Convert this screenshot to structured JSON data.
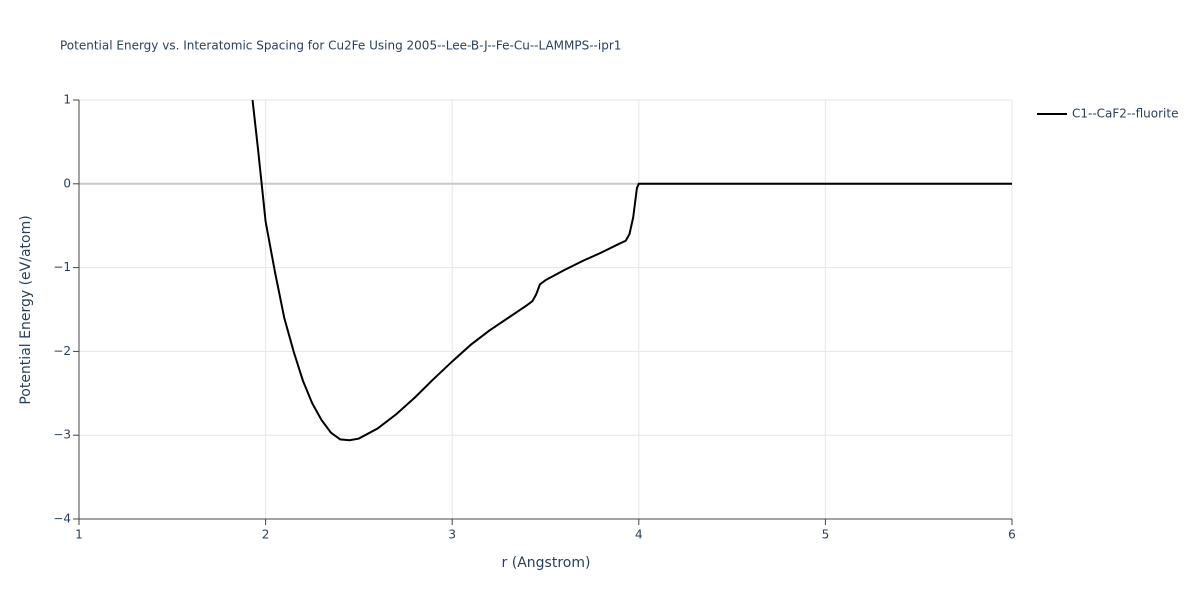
{
  "chart_data": {
    "type": "line",
    "title": "Potential Energy vs. Interatomic Spacing for Cu2Fe Using 2005--Lee-B-J--Fe-Cu--LAMMPS--ipr1",
    "x_label": "r (Angstrom)",
    "y_label": "Potential Energy (eV/atom)",
    "x": [
      1.93,
      1.96,
      2.0,
      2.05,
      2.1,
      2.15,
      2.2,
      2.25,
      2.3,
      2.35,
      2.4,
      2.45,
      2.5,
      2.6,
      2.7,
      2.8,
      2.9,
      3.0,
      3.1,
      3.2,
      3.3,
      3.4,
      3.43,
      3.45,
      3.47,
      3.5,
      3.6,
      3.7,
      3.8,
      3.9,
      3.93,
      3.95,
      3.97,
      3.99,
      4.0,
      4.5,
      5.0,
      5.5,
      6.0
    ],
    "series": [
      {
        "name": "C1--CaF2--fluorite",
        "color": "#000000",
        "values": [
          1,
          0.4,
          -0.45,
          -1.05,
          -1.6,
          -2.0,
          -2.35,
          -2.62,
          -2.82,
          -2.97,
          -3.05,
          -3.06,
          -3.04,
          -2.92,
          -2.75,
          -2.55,
          -2.33,
          -2.12,
          -1.92,
          -1.75,
          -1.6,
          -1.45,
          -1.4,
          -1.32,
          -1.2,
          -1.15,
          -1.03,
          -0.92,
          -0.82,
          -0.71,
          -0.68,
          -0.6,
          -0.4,
          -0.05,
          0,
          0,
          0,
          0,
          0
        ]
      }
    ],
    "xlim": [
      1,
      6
    ],
    "xticks": [
      1,
      2,
      3,
      4,
      5,
      6
    ],
    "ylim": [
      -4,
      1
    ],
    "yticks": [
      {
        "value": -4,
        "label": "−4"
      },
      {
        "value": -3,
        "label": "−3"
      },
      {
        "value": -2,
        "label": "−2"
      },
      {
        "value": -1,
        "label": "−1"
      },
      0,
      1
    ],
    "grid": true,
    "legend": "top-right"
  }
}
